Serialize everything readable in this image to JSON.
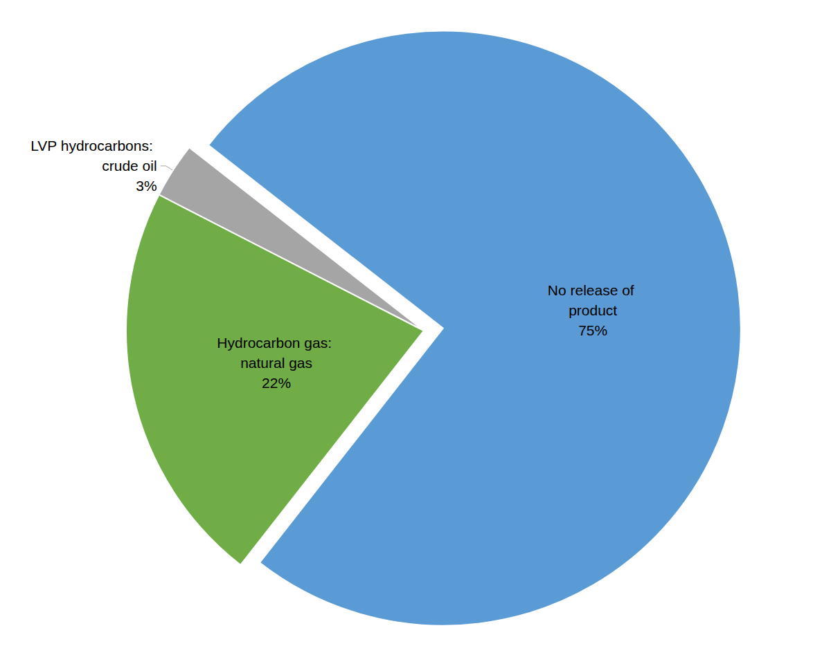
{
  "chart_data": {
    "type": "pie",
    "categories": [
      "No release of product",
      "Hydrocarbon gas: natural gas",
      "LVP hydrocarbons: crude oil"
    ],
    "values": [
      75,
      22,
      3
    ],
    "value_labels": [
      "75%",
      "22%",
      "3%"
    ],
    "colors": [
      "#5b9bd5",
      "#70ad47",
      "#a5a5a5"
    ],
    "data_labels": true
  }
}
